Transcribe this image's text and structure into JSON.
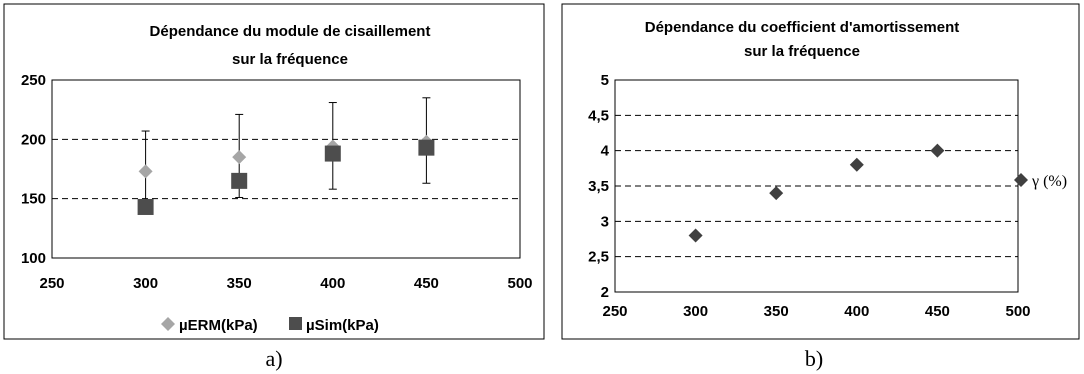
{
  "colors": {
    "erm": "#a6a6a6",
    "sim": "#4d4d4d",
    "gamma": "#404040",
    "axis": "#000000"
  },
  "chart_data": [
    {
      "type": "scatter",
      "title_lines": [
        "Dépendance du module de cisaillement",
        "sur la fréquence"
      ],
      "xlim": [
        250,
        500
      ],
      "ylim": [
        100,
        250
      ],
      "x_ticks": [
        "250",
        "300",
        "350",
        "400",
        "450",
        "500"
      ],
      "y_ticks": [
        "100",
        "150",
        "200",
        "250"
      ],
      "gridlines_y": [
        150,
        200
      ],
      "legend_position": "bottom",
      "series": [
        {
          "name": "µERM(kPa)",
          "marker": "diamond",
          "x": [
            300,
            350,
            400,
            450
          ],
          "y": [
            173,
            185,
            194,
            198
          ],
          "error_low": [
            32,
            34,
            36,
            35
          ],
          "error_high": [
            34,
            36,
            37,
            37
          ]
        },
        {
          "name": "µSim(kPa)",
          "marker": "square",
          "x": [
            300,
            350,
            400,
            450
          ],
          "y": [
            143,
            165,
            188,
            193
          ],
          "error_low": [
            0,
            0,
            0,
            0
          ],
          "error_high": [
            0,
            0,
            0,
            0
          ]
        }
      ],
      "caption": "a)"
    },
    {
      "type": "scatter",
      "title_lines": [
        "Dépendance du coefficient d'amortissement",
        "sur la fréquence"
      ],
      "xlim": [
        250,
        500
      ],
      "ylim": [
        2,
        5
      ],
      "x_ticks": [
        "250",
        "300",
        "350",
        "400",
        "450",
        "500"
      ],
      "y_ticks": [
        "2",
        "2,5",
        "3",
        "3,5",
        "4",
        "4,5",
        "5"
      ],
      "gridlines_y": [
        2.5,
        3,
        3.5,
        4,
        4.5,
        5
      ],
      "legend_position": "right",
      "series": [
        {
          "name": "γ (%)",
          "marker": "diamond",
          "x": [
            300,
            350,
            400,
            450
          ],
          "y": [
            2.8,
            3.4,
            3.8,
            4.0
          ]
        }
      ],
      "caption": "b)"
    }
  ]
}
